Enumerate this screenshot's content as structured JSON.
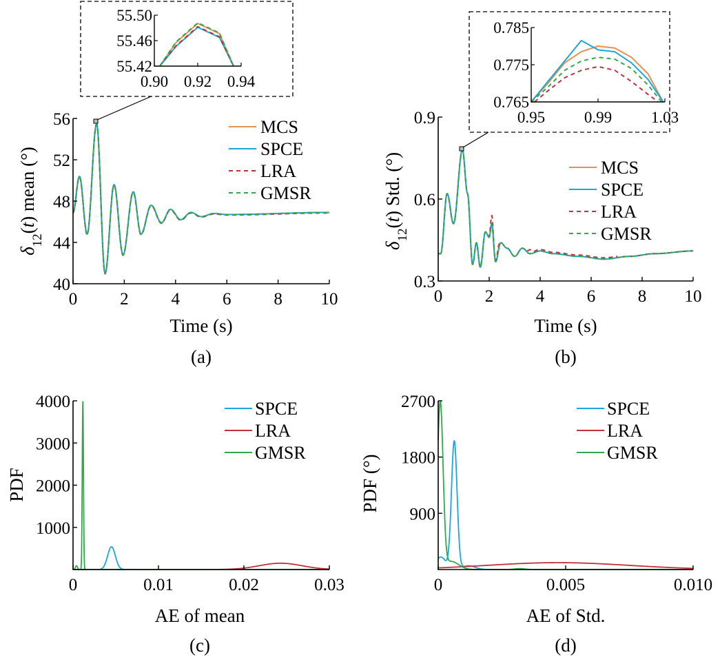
{
  "colors": {
    "MCS": "#e8904f",
    "SPCE": "#1aa6dc",
    "LRA": "#c0313a",
    "GMSR": "#2eaa4a"
  },
  "chart_data": [
    {
      "id": "a",
      "caption": "(a)",
      "type": "line",
      "ylabel": "δ12(t) mean (°)",
      "ylabel_parts": {
        "prefix": "δ",
        "sub": "12",
        "open": "(",
        "var": "t",
        "suffix": ") mean (°)"
      },
      "xlabel": "Time (s)",
      "xlim": [
        0,
        10
      ],
      "ylim": [
        40,
        56
      ],
      "xticks": [
        0,
        2,
        4,
        6,
        8,
        10
      ],
      "xtick_labels": [
        "0",
        "2",
        "4",
        "6",
        "8",
        "10"
      ],
      "yticks": [
        40,
        44,
        48,
        52,
        56
      ],
      "ytick_labels": [
        "40",
        "44",
        "48",
        "52",
        "56"
      ],
      "legend": [
        "MCS",
        "SPCE",
        "LRA",
        "GMSR"
      ],
      "series_desc": "damped oscillation, all four series overlap",
      "signal": {
        "mean": 46.9,
        "t": [
          0,
          0.25,
          0.55,
          0.92,
          1.25,
          1.6,
          1.95,
          2.35,
          2.65,
          3.05,
          3.45,
          3.8,
          4.2,
          4.6,
          5.0,
          5.5,
          6.0,
          10
        ],
        "y": [
          46.9,
          50.4,
          44.8,
          55.5,
          41.0,
          49.6,
          42.8,
          48.9,
          44.8,
          47.6,
          45.9,
          47.2,
          46.2,
          46.9,
          46.5,
          46.8,
          46.7,
          46.9
        ]
      },
      "inset": {
        "xlim": [
          0.9,
          0.94
        ],
        "ylim": [
          55.42,
          55.5
        ],
        "xticks": [
          0.9,
          0.92,
          0.94
        ],
        "xtick_labels": [
          "0.90",
          "0.92",
          "0.94"
        ],
        "yticks": [
          55.42,
          55.46,
          55.5
        ],
        "ytick_labels": [
          "55.42",
          "55.46",
          "55.50"
        ],
        "series": [
          {
            "name": "MCS",
            "x": [
              0.9025,
              0.91,
              0.92,
              0.93,
              0.9365
            ],
            "y": [
              55.42,
              55.457,
              55.487,
              55.471,
              55.42
            ]
          },
          {
            "name": "SPCE",
            "x": [
              0.9025,
              0.91,
              0.92,
              0.93,
              0.9365
            ],
            "y": [
              55.42,
              55.451,
              55.481,
              55.465,
              55.42
            ]
          },
          {
            "name": "LRA",
            "x": [
              0.9025,
              0.91,
              0.92,
              0.93,
              0.9365
            ],
            "y": [
              55.42,
              55.452,
              55.482,
              55.466,
              55.42
            ]
          },
          {
            "name": "GMSR",
            "x": [
              0.9025,
              0.91,
              0.92,
              0.93,
              0.9365
            ],
            "y": [
              55.42,
              55.458,
              55.488,
              55.472,
              55.42
            ]
          }
        ]
      }
    },
    {
      "id": "b",
      "caption": "(b)",
      "type": "line",
      "ylabel": "δ12(t) Std. (°)",
      "ylabel_parts": {
        "prefix": "δ",
        "sub": "12",
        "open": "(",
        "var": "t",
        "suffix": ") Std. (°)"
      },
      "xlabel": "Time (s)",
      "xlim": [
        0,
        10
      ],
      "ylim": [
        0.3,
        0.9
      ],
      "xticks": [
        0,
        2,
        4,
        6,
        8,
        10
      ],
      "xtick_labels": [
        "0",
        "2",
        "4",
        "6",
        "8",
        "10"
      ],
      "yticks": [
        0.3,
        0.6,
        0.9
      ],
      "ytick_labels": [
        "0.3",
        "0.6",
        "0.9"
      ],
      "legend": [
        "MCS",
        "SPCE",
        "LRA",
        "GMSR"
      ],
      "signal": {
        "t": [
          0,
          0.1,
          0.35,
          0.6,
          0.95,
          1.15,
          1.35,
          1.5,
          1.65,
          1.85,
          2.0,
          2.1,
          2.25,
          2.45,
          2.7,
          3.0,
          3.3,
          3.6,
          4.0,
          4.5,
          5.5,
          6.5,
          7.5,
          8.5,
          10
        ],
        "y": [
          0.4,
          0.4,
          0.62,
          0.51,
          0.78,
          0.62,
          0.36,
          0.44,
          0.35,
          0.48,
          0.46,
          0.51,
          0.37,
          0.44,
          0.42,
          0.39,
          0.42,
          0.4,
          0.41,
          0.4,
          0.39,
          0.38,
          0.39,
          0.4,
          0.41
        ]
      },
      "lra_bumps": [
        {
          "t": 2.1,
          "dy": 0.03
        },
        {
          "t": 2.35,
          "dy": 0.015
        },
        {
          "t": 3.6,
          "dy": 0.01
        }
      ],
      "inset": {
        "xlim": [
          0.95,
          1.03
        ],
        "ylim": [
          0.765,
          0.785
        ],
        "xticks": [
          0.95,
          0.99,
          1.03
        ],
        "xtick_labels": [
          "0.95",
          "0.99",
          "1.03"
        ],
        "yticks": [
          0.765,
          0.775,
          0.785
        ],
        "ytick_labels": [
          "0.765",
          "0.775",
          "0.785"
        ],
        "series": [
          {
            "name": "MCS",
            "x": [
              0.95,
              0.96,
              0.97,
              0.98,
              0.99,
              1.0,
              1.01,
              1.02,
              1.029
            ],
            "y": [
              0.765,
              0.77,
              0.7755,
              0.7785,
              0.78,
              0.7795,
              0.777,
              0.7725,
              0.765
            ]
          },
          {
            "name": "SPCE",
            "x": [
              0.95,
              0.96,
              0.97,
              0.98,
              0.99,
              1.0,
              1.01,
              1.02,
              1.029
            ],
            "y": [
              0.765,
              0.7705,
              0.776,
              0.7815,
              0.779,
              0.7785,
              0.7755,
              0.771,
              0.765
            ]
          },
          {
            "name": "LRA",
            "x": [
              0.952,
              0.96,
              0.97,
              0.98,
              0.99,
              1.0,
              1.01,
              1.02,
              1.026
            ],
            "y": [
              0.765,
              0.768,
              0.7715,
              0.7735,
              0.7745,
              0.7735,
              0.7705,
              0.767,
              0.765
            ]
          },
          {
            "name": "GMSR",
            "x": [
              0.95,
              0.96,
              0.97,
              0.98,
              0.99,
              1.0,
              1.01,
              1.02,
              1.028
            ],
            "y": [
              0.765,
              0.769,
              0.7735,
              0.776,
              0.777,
              0.7765,
              0.774,
              0.7695,
              0.765
            ]
          }
        ]
      }
    },
    {
      "id": "c",
      "caption": "(c)",
      "type": "line",
      "ylabel": "PDF",
      "xlabel": "AE of mean",
      "xlim": [
        0,
        0.03
      ],
      "ylim": [
        0,
        4000
      ],
      "xticks": [
        0,
        0.01,
        0.02,
        0.03
      ],
      "xtick_labels": [
        "0",
        "0.01",
        "0.02",
        "0.03"
      ],
      "yticks": [
        1000,
        2000,
        3000,
        4000
      ],
      "ytick_labels": [
        "1000",
        "2000",
        "3000",
        "4000"
      ],
      "legend": [
        "SPCE",
        "LRA",
        "GMSR"
      ],
      "series": [
        {
          "name": "SPCE",
          "peaks": [
            {
              "mu": 0.0045,
              "sigma": 0.00045,
              "amp": 540
            }
          ],
          "base": 0
        },
        {
          "name": "LRA",
          "peaks": [
            {
              "mu": 0.0243,
              "sigma": 0.0025,
              "amp": 150
            }
          ],
          "base": 0
        },
        {
          "name": "GMSR",
          "peaks": [
            {
              "mu": 0.00115,
              "sigma": 7e-05,
              "amp": 4000
            },
            {
              "mu": 0.0004,
              "sigma": 0.00012,
              "amp": 90
            }
          ],
          "base": 0
        }
      ]
    },
    {
      "id": "d",
      "caption": "(d)",
      "type": "line",
      "ylabel": "PDF (°)",
      "xlabel": "AE of Std.",
      "xlim": [
        0,
        0.01
      ],
      "ylim": [
        0,
        2700
      ],
      "xticks": [
        0,
        0.005,
        0.01
      ],
      "xtick_labels": [
        "0",
        "0.005",
        "0.010"
      ],
      "yticks": [
        900,
        1800,
        2700
      ],
      "ytick_labels": [
        "900",
        "1800",
        "2700"
      ],
      "legend": [
        "SPCE",
        "LRA",
        "GMSR"
      ],
      "series": [
        {
          "name": "SPCE",
          "peaks": [
            {
              "mu": 0.00063,
              "sigma": 0.00011,
              "amp": 2050
            },
            {
              "mu": 0.0001,
              "sigma": 0.0002,
              "amp": 200
            },
            {
              "mu": 0.0012,
              "sigma": 0.00025,
              "amp": 60
            }
          ]
        },
        {
          "name": "LRA",
          "peaks": [
            {
              "mu": 0.0047,
              "sigma": 0.0028,
              "amp": 110
            }
          ]
        },
        {
          "name": "GMSR",
          "peaks": [
            {
              "mu": 8e-05,
              "sigma": 0.00011,
              "amp": 2650
            },
            {
              "mu": 0.0005,
              "sigma": 0.0003,
              "amp": 130
            },
            {
              "mu": 0.0032,
              "sigma": 0.0002,
              "amp": 15
            }
          ]
        }
      ]
    }
  ]
}
